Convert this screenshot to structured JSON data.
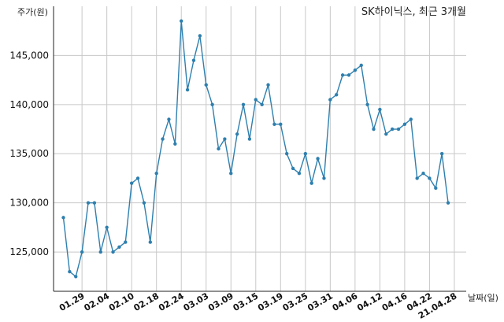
{
  "chart_data": {
    "type": "line",
    "title": "SK하이닉스, 최근 3개월",
    "ylabel": "주가(원)",
    "xlabel": "날짜(일)",
    "ylim": [
      121000,
      150000
    ],
    "yticks": [
      125000,
      130000,
      135000,
      140000,
      145000
    ],
    "ytick_labels": [
      "125,000",
      "130,000",
      "135,000",
      "140,000",
      "145,000"
    ],
    "xtick_labels": [
      "01.29",
      "02.04",
      "02.10",
      "02.18",
      "02.24",
      "03.03",
      "03.09",
      "03.15",
      "03.19",
      "03.25",
      "03.31",
      "04.06",
      "04.12",
      "04.16",
      "04.22",
      "21.04.28"
    ],
    "xtick_index": [
      3,
      7,
      11,
      15,
      19,
      23,
      27,
      31,
      35,
      39,
      43,
      47,
      51,
      55,
      59,
      63
    ],
    "grid": true,
    "color": "#2e7fae",
    "values": [
      128500,
      123000,
      122500,
      125000,
      130000,
      130000,
      125000,
      127500,
      125000,
      125500,
      126000,
      132000,
      132500,
      130000,
      126000,
      133000,
      136500,
      138500,
      136000,
      148500,
      141500,
      144500,
      147000,
      142000,
      140000,
      135500,
      136500,
      133000,
      137000,
      140000,
      136500,
      140500,
      140000,
      142000,
      138000,
      138000,
      135000,
      133500,
      133000,
      135000,
      132000,
      134500,
      132500,
      140500,
      141000,
      143000,
      143000,
      143500,
      144000,
      140000,
      137500,
      139500,
      137000,
      137500,
      137500,
      138000,
      138500,
      132500,
      133000,
      132500,
      131500,
      135000,
      130000
    ]
  }
}
